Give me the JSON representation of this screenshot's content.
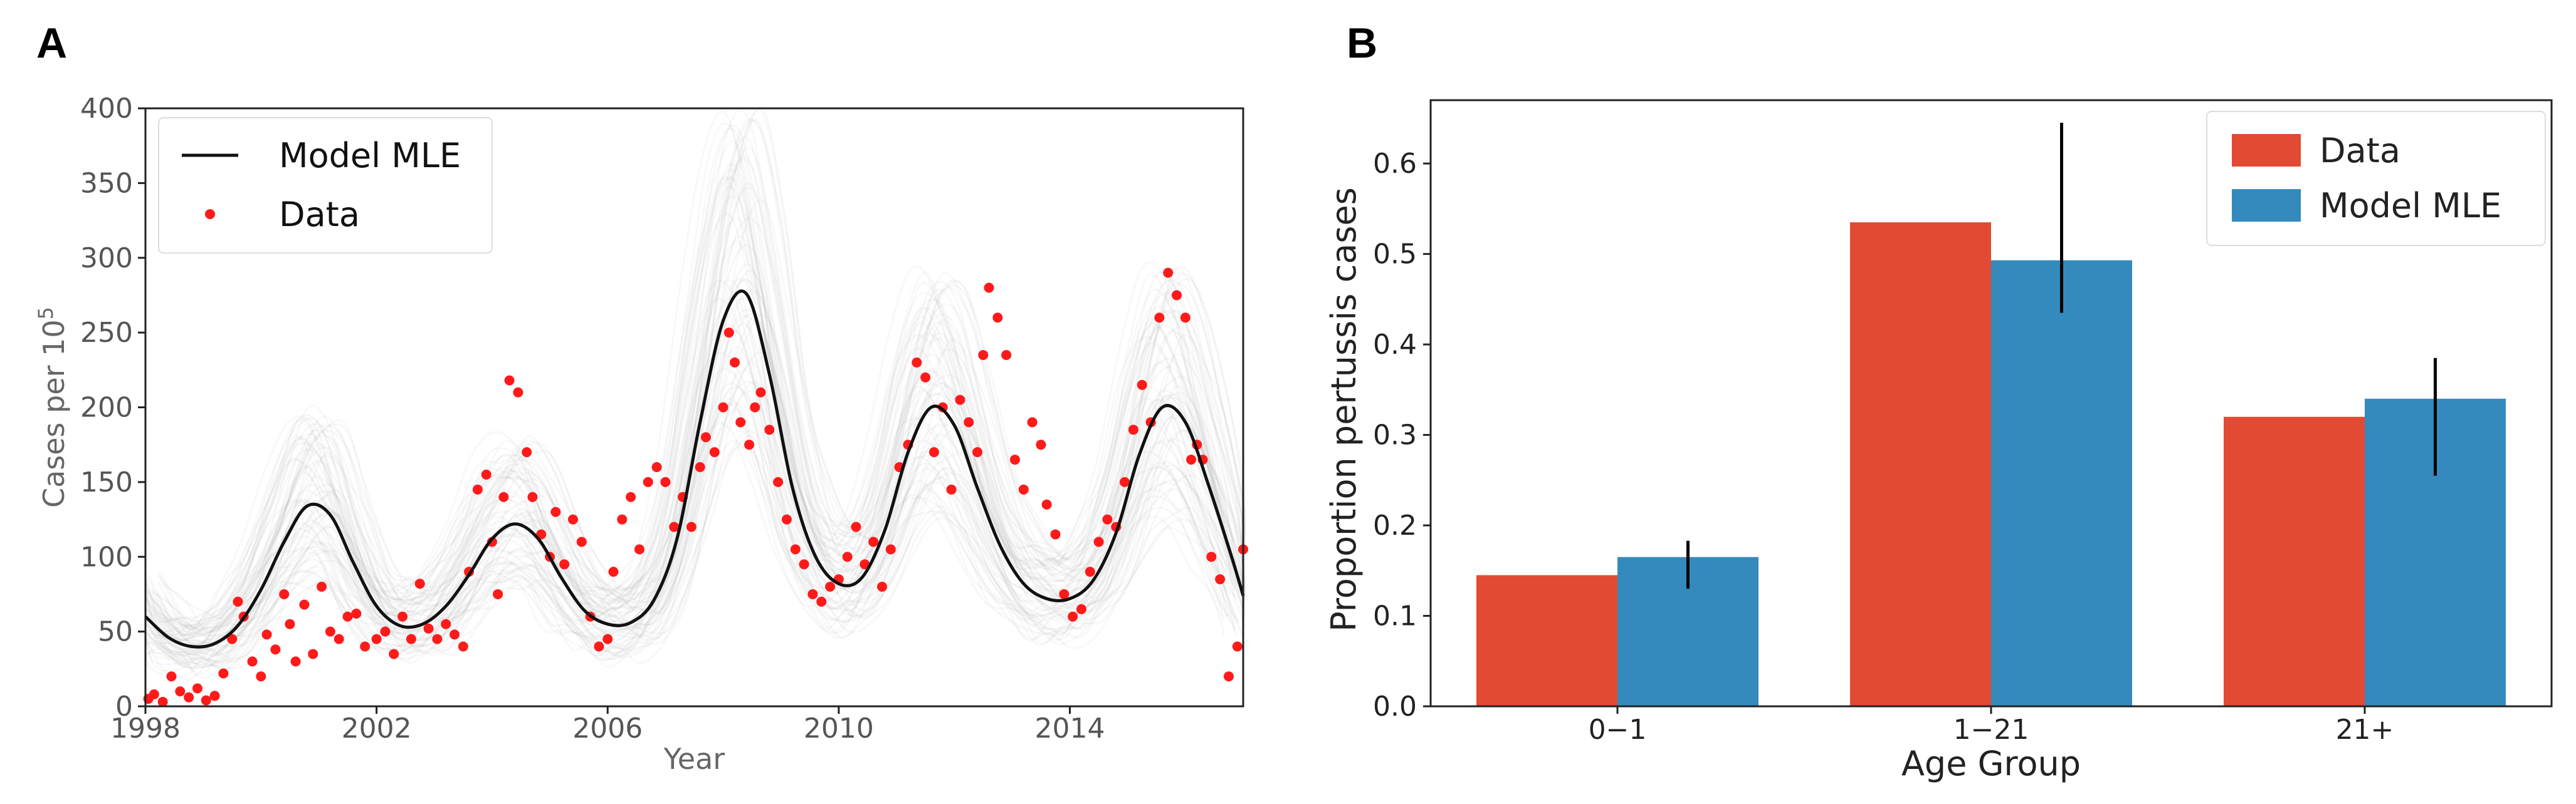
{
  "panels": {
    "a": "A",
    "b": "B"
  },
  "chart_data": [
    {
      "type": "line",
      "panel": "A",
      "xlabel": "Year",
      "ylabel": "Cases per 10",
      "ylabel_sup": "5",
      "xlim": [
        1998,
        2017
      ],
      "ylim": [
        0,
        400
      ],
      "xticks": [
        "1998",
        "2002",
        "2006",
        "2010",
        "2014"
      ],
      "yticks": [
        "0",
        "50",
        "100",
        "150",
        "200",
        "250",
        "300",
        "350",
        "400"
      ],
      "legend": {
        "position": "top-left",
        "entries": [
          "Model MLE",
          "Data"
        ]
      },
      "colors": {
        "model": "#111111",
        "data": "#ff1a1a",
        "ensemble": "#9a9a9a"
      },
      "model_mle": {
        "x": [
          1998,
          1998.4,
          1998.8,
          1999.2,
          1999.6,
          2000.0,
          2000.4,
          2000.8,
          2001.2,
          2001.6,
          2002.0,
          2002.4,
          2002.8,
          2003.2,
          2003.6,
          2004.0,
          2004.4,
          2004.8,
          2005.2,
          2005.6,
          2006.0,
          2006.4,
          2006.8,
          2007.2,
          2007.6,
          2008.0,
          2008.4,
          2008.8,
          2009.2,
          2009.6,
          2010.0,
          2010.4,
          2010.8,
          2011.2,
          2011.6,
          2012.0,
          2012.4,
          2012.8,
          2013.2,
          2013.6,
          2014.0,
          2014.4,
          2014.8,
          2015.2,
          2015.6,
          2016.0,
          2016.4,
          2016.8,
          2017.0
        ],
        "y": [
          60,
          46,
          40,
          42,
          54,
          78,
          110,
          134,
          128,
          96,
          67,
          54,
          55,
          67,
          88,
          112,
          122,
          112,
          86,
          64,
          55,
          56,
          71,
          112,
          190,
          258,
          276,
          222,
          146,
          100,
          82,
          86,
          118,
          170,
          200,
          188,
          146,
          107,
          82,
          72,
          72,
          84,
          116,
          168,
          200,
          190,
          148,
          100,
          74
        ]
      },
      "data_points": {
        "x": [
          1998.05,
          1998.15,
          1998.3,
          1998.45,
          1998.6,
          1998.75,
          1998.9,
          1999.05,
          1999.2,
          1999.35,
          1999.5,
          1999.6,
          1999.7,
          1999.85,
          2000.0,
          2000.1,
          2000.25,
          2000.4,
          2000.5,
          2000.6,
          2000.75,
          2000.9,
          2001.05,
          2001.2,
          2001.35,
          2001.5,
          2001.65,
          2001.8,
          2002.0,
          2002.15,
          2002.3,
          2002.45,
          2002.6,
          2002.75,
          2002.9,
          2003.05,
          2003.2,
          2003.35,
          2003.5,
          2003.6,
          2003.75,
          2003.9,
          2004.0,
          2004.1,
          2004.2,
          2004.3,
          2004.45,
          2004.6,
          2004.7,
          2004.85,
          2005.0,
          2005.1,
          2005.25,
          2005.4,
          2005.55,
          2005.7,
          2005.85,
          2006.0,
          2006.1,
          2006.25,
          2006.4,
          2006.55,
          2006.7,
          2006.85,
          2007.0,
          2007.15,
          2007.3,
          2007.45,
          2007.6,
          2007.7,
          2007.85,
          2008.0,
          2008.1,
          2008.2,
          2008.3,
          2008.45,
          2008.55,
          2008.65,
          2008.8,
          2008.95,
          2009.1,
          2009.25,
          2009.4,
          2009.55,
          2009.7,
          2009.85,
          2010.0,
          2010.15,
          2010.3,
          2010.45,
          2010.6,
          2010.75,
          2010.9,
          2011.05,
          2011.2,
          2011.35,
          2011.5,
          2011.65,
          2011.8,
          2011.95,
          2012.1,
          2012.25,
          2012.4,
          2012.5,
          2012.6,
          2012.75,
          2012.9,
          2013.05,
          2013.2,
          2013.35,
          2013.5,
          2013.6,
          2013.75,
          2013.9,
          2014.05,
          2014.2,
          2014.35,
          2014.5,
          2014.65,
          2014.8,
          2014.95,
          2015.1,
          2015.25,
          2015.4,
          2015.55,
          2015.7,
          2015.85,
          2016.0,
          2016.1,
          2016.2,
          2016.3,
          2016.45,
          2016.6,
          2016.75,
          2016.9,
          2017.0
        ],
        "y": [
          5,
          8,
          3,
          20,
          10,
          6,
          12,
          4,
          7,
          22,
          45,
          70,
          60,
          30,
          20,
          48,
          38,
          75,
          55,
          30,
          68,
          35,
          80,
          50,
          45,
          60,
          62,
          40,
          45,
          50,
          35,
          60,
          45,
          82,
          52,
          45,
          55,
          48,
          40,
          90,
          145,
          155,
          110,
          75,
          140,
          218,
          210,
          170,
          140,
          115,
          100,
          130,
          95,
          125,
          110,
          60,
          40,
          45,
          90,
          125,
          140,
          105,
          150,
          160,
          150,
          120,
          140,
          120,
          160,
          180,
          170,
          200,
          250,
          230,
          190,
          175,
          200,
          210,
          185,
          150,
          125,
          105,
          95,
          75,
          70,
          80,
          85,
          100,
          120,
          95,
          110,
          80,
          105,
          160,
          175,
          230,
          220,
          170,
          200,
          145,
          205,
          190,
          170,
          235,
          280,
          260,
          235,
          165,
          145,
          190,
          175,
          135,
          115,
          75,
          60,
          65,
          90,
          110,
          125,
          120,
          150,
          185,
          215,
          190,
          260,
          290,
          275,
          260,
          165,
          175,
          165,
          100,
          85,
          20,
          40,
          105
        ]
      }
    },
    {
      "type": "bar",
      "panel": "B",
      "xlabel": "Age Group",
      "ylabel": "Proportion pertussis cases",
      "categories": [
        "0−1",
        "1−21",
        "21+"
      ],
      "ylim": [
        0,
        0.67
      ],
      "yticks": [
        "0.0",
        "0.1",
        "0.2",
        "0.3",
        "0.4",
        "0.5",
        "0.6"
      ],
      "legend": {
        "position": "top-right",
        "entries": [
          "Data",
          "Model MLE"
        ]
      },
      "series": [
        {
          "name": "Data",
          "color": "#e24a33",
          "values": [
            0.145,
            0.535,
            0.32
          ]
        },
        {
          "name": "Model MLE",
          "color": "#348abd",
          "values": [
            0.165,
            0.493,
            0.34
          ],
          "err_low": [
            0.13,
            0.435,
            0.255
          ],
          "err_high": [
            0.183,
            0.645,
            0.385
          ]
        }
      ]
    }
  ]
}
